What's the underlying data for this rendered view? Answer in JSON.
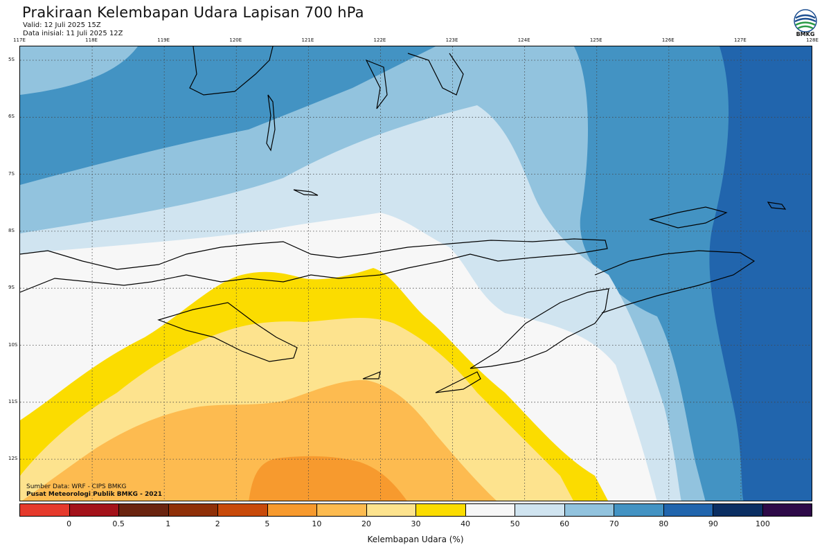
{
  "header": {
    "title": "Prakiraan Kelembapan Udara Lapisan 700 hPa",
    "valid": "Valid: 12 Juli 2025 15Z",
    "initial": "Data inisial: 11 Juli 2025 12Z",
    "logo_label": "BMKG"
  },
  "axes": {
    "lon_labels": [
      "117E",
      "118E",
      "119E",
      "120E",
      "121E",
      "122E",
      "123E",
      "124E",
      "125E",
      "126E",
      "127E",
      "128E"
    ],
    "lat_labels": [
      "5S",
      "6S",
      "7S",
      "8S",
      "9S",
      "10S",
      "11S",
      "12S"
    ]
  },
  "footer": {
    "source": "Sumber Data: WRF - CIPS BMKG",
    "producer": "Pusat Meteorologi Publik BMKG - 2021"
  },
  "legend": {
    "title": "Kelembapan Udara (%)",
    "ticks": [
      "0",
      "0.5",
      "1",
      "2",
      "5",
      "10",
      "20",
      "30",
      "40",
      "50",
      "60",
      "70",
      "80",
      "90",
      "100"
    ],
    "colors": [
      "#e53a2c",
      "#a3121a",
      "#6a2410",
      "#8f3008",
      "#c84a0a",
      "#f79a2e",
      "#fdbb50",
      "#fde38e",
      "#fbdc00",
      "#f7f7f7",
      "#d0e4f0",
      "#92c3de",
      "#4393c3",
      "#2165ad",
      "#0b2f63",
      "#2e0a48"
    ]
  },
  "map": {
    "colors": {
      "deep_blue": "#2165ad",
      "mid_blue": "#4393c3",
      "light_blue": "#92c3de",
      "pale_blue": "#d0e4f0",
      "white": "#f7f7f7",
      "yellow": "#fbdc00",
      "light_orange": "#fde38e",
      "orange": "#fdbb50",
      "dark_orange": "#f79a2e"
    }
  }
}
